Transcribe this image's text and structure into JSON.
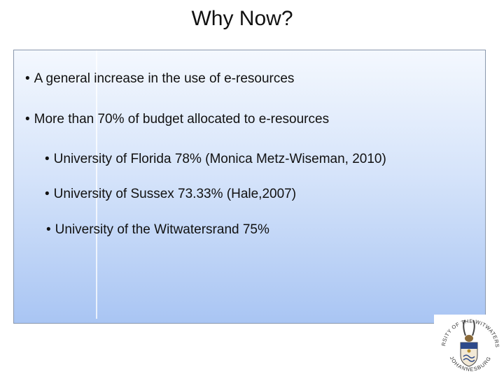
{
  "slide": {
    "title": "Why Now?",
    "bullets": [
      "A general increase in the use of e-resources",
      "More than 70% of budget allocated to e-resources",
      "University of Florida 78% (Monica Metz-Wiseman, 2010)",
      "University of Sussex 73.33% (Hale,2007)",
      "University of the Witwatersrand 75%"
    ],
    "bullet_symbol": "•"
  },
  "logo": {
    "ring_top_text": "UNIVERSITY OF THE WITWATERSRAND",
    "ring_bottom_text": "JOHANNESBURG"
  },
  "colors": {
    "box_top": "#f4f8fe",
    "box_bottom": "#a9c5f3",
    "box_border": "#8a98ad"
  }
}
